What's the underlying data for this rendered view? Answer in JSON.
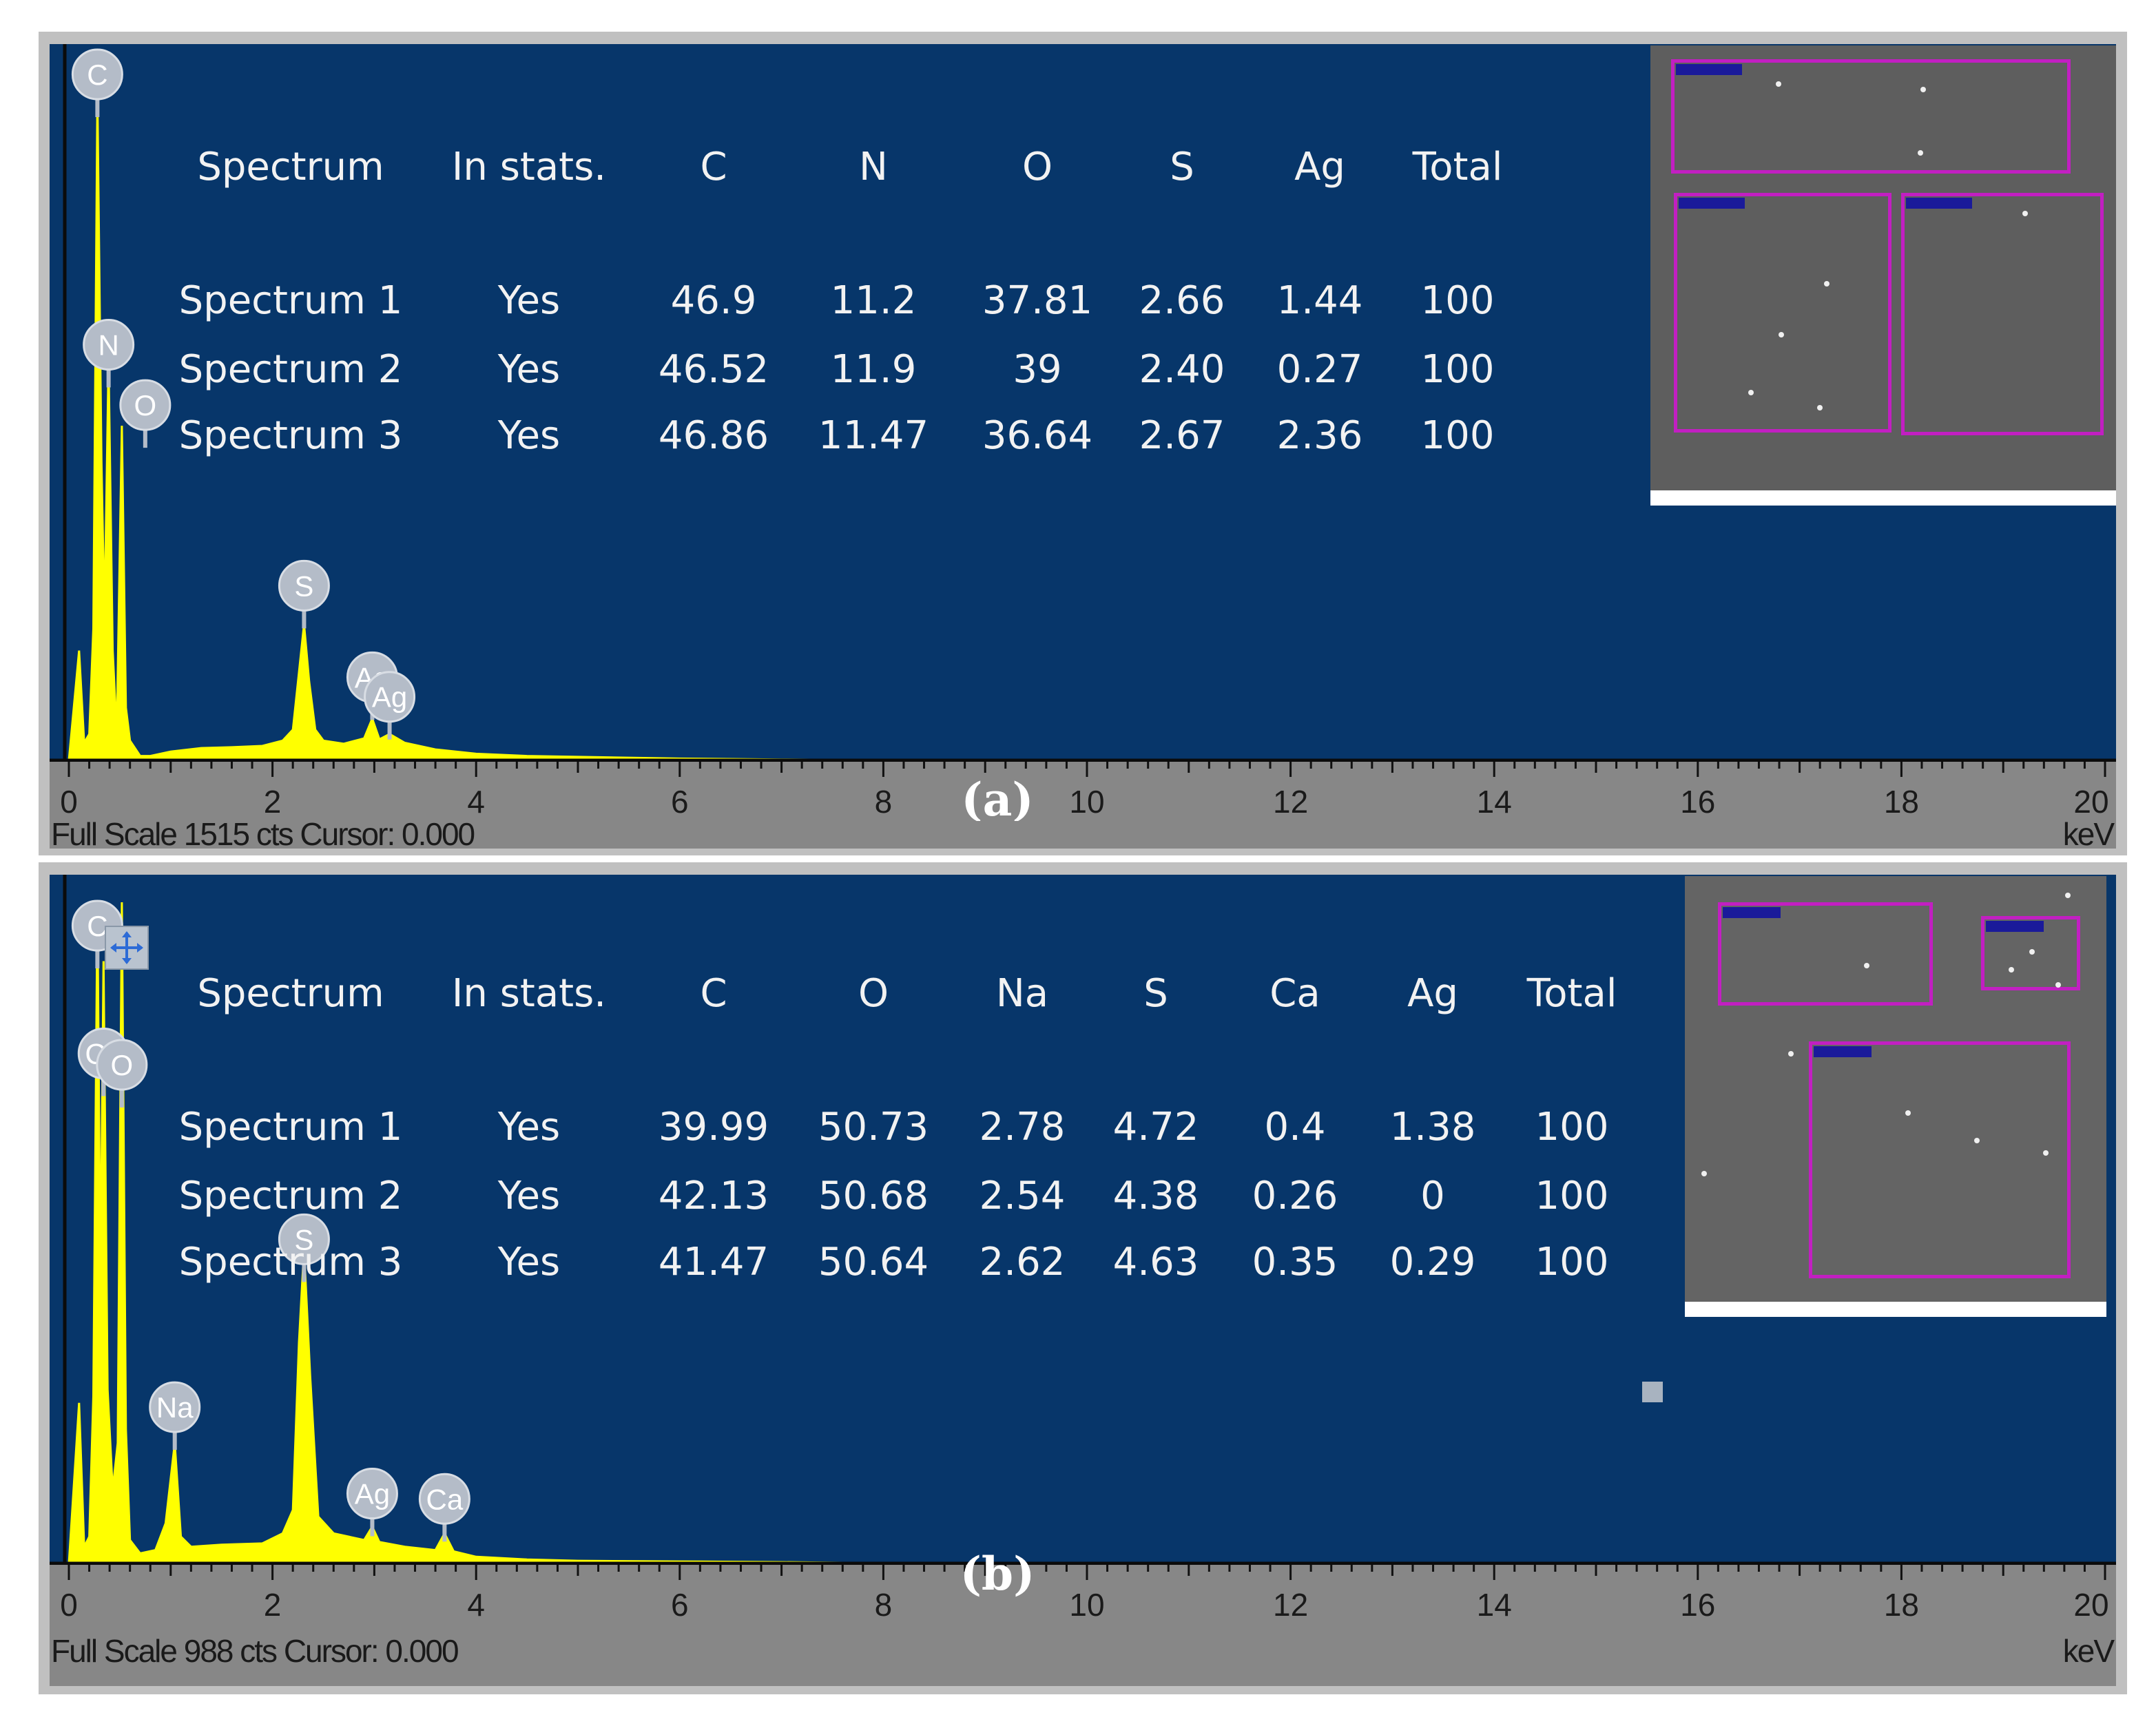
{
  "colors": {
    "spectrum_bg": "#07366a",
    "frame": "#c0c0c0",
    "axis_bg": "#878787",
    "trace": "#ffff00",
    "peak_badge": "#b4bcc8",
    "roi": "#c21fc2"
  },
  "chart_data": [
    {
      "type": "area",
      "panel_label": "(a)",
      "xlabel": "keV",
      "xlim": [
        0,
        20
      ],
      "x_ticks": [
        "0",
        "2",
        "4",
        "6",
        "8",
        "10",
        "12",
        "14",
        "16",
        "18",
        "20"
      ],
      "status": "Full Scale 1515 cts Cursor: 0.000",
      "full_scale_cts": 1515,
      "ylim": [
        0,
        1515
      ],
      "peaks": [
        {
          "label": "C",
          "x": 0.28,
          "y": 1515
        },
        {
          "label": "O",
          "x": 0.52,
          "y": 762
        },
        {
          "label": "N",
          "x": 0.39,
          "y": 912
        },
        {
          "label": "S",
          "x": 2.31,
          "y": 310
        },
        {
          "label": "Ag",
          "x": 2.98,
          "y": 95
        },
        {
          "label": "Ag",
          "x": 3.15,
          "y": 60
        }
      ],
      "series": [
        {
          "x": [
            0.0,
            0.1,
            0.15,
            0.2,
            0.24,
            0.28,
            0.32,
            0.35,
            0.39,
            0.43,
            0.47,
            0.52,
            0.56,
            0.6,
            0.7,
            0.8,
            1.0,
            1.3,
            1.6,
            1.9,
            2.1,
            2.2,
            2.26,
            2.31,
            2.36,
            2.42,
            2.5,
            2.7,
            2.9,
            2.98,
            3.05,
            3.15,
            3.3,
            3.6,
            4.0,
            4.5,
            5.0,
            6.0,
            7.0,
            7.6,
            8.0,
            20.0
          ],
          "y": [
            0,
            250,
            40,
            60,
            300,
            1515,
            680,
            320,
            912,
            250,
            60,
            762,
            120,
            45,
            10,
            10,
            20,
            28,
            30,
            33,
            45,
            70,
            200,
            310,
            180,
            70,
            45,
            38,
            50,
            95,
            48,
            60,
            40,
            25,
            15,
            10,
            8,
            4,
            2,
            1,
            0,
            0
          ]
        }
      ],
      "table": {
        "headers": [
          "Spectrum",
          "In stats.",
          "C",
          "N",
          "O",
          "S",
          "Ag",
          "Total"
        ],
        "rows": [
          [
            "Spectrum 1",
            "Yes",
            "46.9",
            "11.2",
            "37.81",
            "2.66",
            "1.44",
            "100"
          ],
          [
            "Spectrum 2",
            "Yes",
            "46.52",
            "11.9",
            "39",
            "2.40",
            "0.27",
            "100"
          ],
          [
            "Spectrum 3",
            "Yes",
            "46.86",
            "11.47",
            "36.64",
            "2.67",
            "2.36",
            "100"
          ]
        ]
      }
    },
    {
      "type": "area",
      "panel_label": "(b)",
      "xlabel": "keV",
      "xlim": [
        0,
        20
      ],
      "x_ticks": [
        "0",
        "2",
        "4",
        "6",
        "8",
        "10",
        "12",
        "14",
        "16",
        "18",
        "20"
      ],
      "status": "Full Scale 988 cts Cursor: 0.000",
      "full_scale_cts": 988,
      "ylim": [
        0,
        988
      ],
      "peaks": [
        {
          "label": "C",
          "x": 0.28,
          "y": 988
        },
        {
          "label": "Ca",
          "x": 0.34,
          "y": 900
        },
        {
          "label": "O",
          "x": 0.52,
          "y": 988
        },
        {
          "label": "Na",
          "x": 1.04,
          "y": 180
        },
        {
          "label": "S",
          "x": 2.31,
          "y": 470
        },
        {
          "label": "Ag",
          "x": 2.98,
          "y": 55
        },
        {
          "label": "Ca",
          "x": 3.69,
          "y": 45
        }
      ],
      "series": [
        {
          "x": [
            0.0,
            0.1,
            0.15,
            0.2,
            0.24,
            0.28,
            0.31,
            0.34,
            0.38,
            0.43,
            0.48,
            0.52,
            0.56,
            0.6,
            0.7,
            0.85,
            0.95,
            1.04,
            1.1,
            1.2,
            1.5,
            1.9,
            2.1,
            2.2,
            2.26,
            2.31,
            2.37,
            2.45,
            2.6,
            2.9,
            2.98,
            3.05,
            3.3,
            3.6,
            3.69,
            3.78,
            4.0,
            4.5,
            5.0,
            6.0,
            7.0,
            7.6,
            8.0,
            20.0
          ],
          "y": [
            0,
            240,
            25,
            40,
            250,
            988,
            420,
            900,
            260,
            110,
            180,
            988,
            200,
            35,
            15,
            20,
            60,
            180,
            40,
            25,
            28,
            30,
            45,
            80,
            330,
            470,
            280,
            70,
            45,
            35,
            55,
            32,
            25,
            20,
            45,
            18,
            10,
            6,
            4,
            3,
            2,
            1,
            0,
            0
          ]
        }
      ],
      "table": {
        "headers": [
          "Spectrum",
          "In stats.",
          "C",
          "O",
          "Na",
          "S",
          "Ca",
          "Ag",
          "Total"
        ],
        "rows": [
          [
            "Spectrum 1",
            "Yes",
            "39.99",
            "50.73",
            "2.78",
            "4.72",
            "0.4",
            "1.38",
            "100"
          ],
          [
            "Spectrum 2",
            "Yes",
            "42.13",
            "50.68",
            "2.54",
            "4.38",
            "0.26",
            "0",
            "100"
          ],
          [
            "Spectrum 3",
            "Yes",
            "41.47",
            "50.64",
            "2.62",
            "4.63",
            "0.35",
            "0.29",
            "100"
          ]
        ]
      }
    }
  ]
}
